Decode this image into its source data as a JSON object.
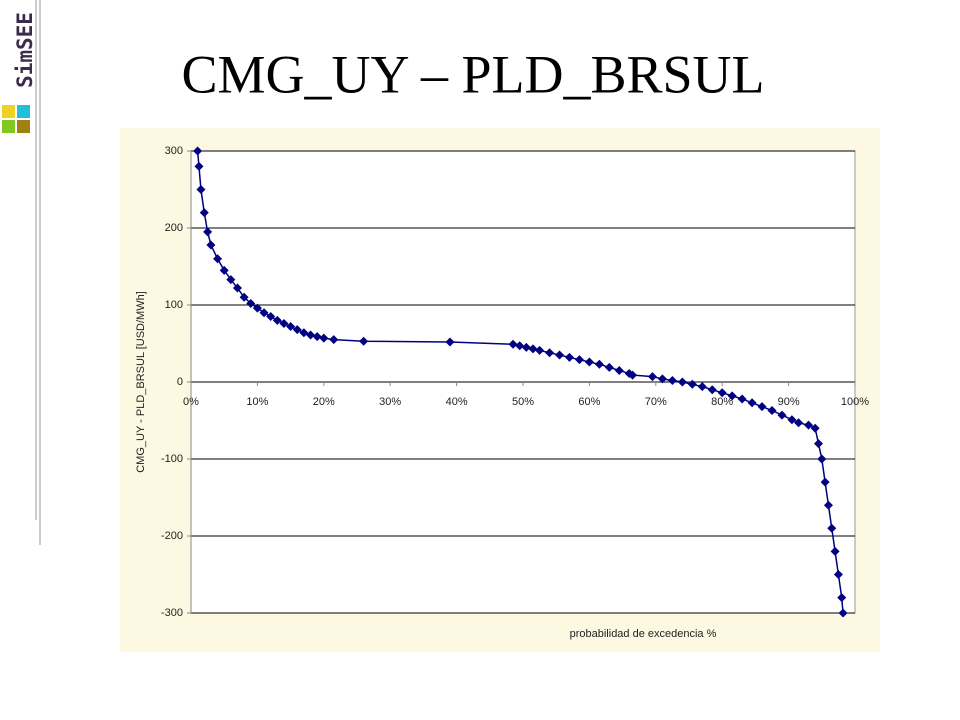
{
  "slide": {
    "logo": "SimSEE"
  },
  "chart_data": {
    "type": "line",
    "title": "CMG_UY – PLD_BRSUL",
    "x_label": "probabilidad de excedencia %",
    "y_label": "CMG_UY - PLD_BRSUL [USD/MWh]",
    "color": "#000080",
    "grid": true,
    "x": [
      1,
      1.2,
      1.5,
      2,
      2.5,
      3,
      4,
      5,
      6,
      7,
      8,
      9,
      10,
      11,
      12,
      13,
      14,
      15,
      16,
      17,
      18,
      19,
      20,
      21.5,
      26,
      39,
      48.5,
      49.5,
      50.5,
      51.5,
      52.5,
      54,
      55.5,
      57,
      58.5,
      60,
      61.5,
      63,
      64.5,
      66,
      66.5,
      69.5,
      71,
      72.5,
      74,
      75.5,
      77,
      78.5,
      80,
      81.5,
      83,
      84.5,
      86,
      87.5,
      89,
      90.5,
      91.5,
      93,
      94,
      94.5,
      95,
      95.5,
      96,
      96.5,
      97,
      97.5,
      98,
      98.2
    ],
    "values": [
      300,
      280,
      250,
      220,
      195,
      178,
      160,
      145,
      133,
      122,
      110,
      102,
      96,
      90,
      85,
      80,
      76,
      72,
      68,
      64,
      61,
      59,
      57,
      55,
      53,
      52,
      49,
      47,
      45,
      43,
      41,
      38,
      35,
      32,
      29,
      26,
      23,
      19,
      15,
      11,
      9,
      7,
      4,
      2,
      0,
      -3,
      -6,
      -10,
      -14,
      -18,
      -22,
      -27,
      -32,
      -37,
      -43,
      -49,
      -53,
      -56,
      -60,
      -80,
      -100,
      -130,
      -160,
      -190,
      -220,
      -250,
      -280,
      -300
    ],
    "xlim": [
      0,
      100
    ],
    "xticks": [
      {
        "value": 0,
        "label": "0%"
      },
      {
        "value": 10,
        "label": "10%"
      },
      {
        "value": 20,
        "label": "20%"
      },
      {
        "value": 30,
        "label": "30%"
      },
      {
        "value": 40,
        "label": "40%"
      },
      {
        "value": 50,
        "label": "50%"
      },
      {
        "value": 60,
        "label": "60%"
      },
      {
        "value": 70,
        "label": "70%"
      },
      {
        "value": 80,
        "label": "80%"
      },
      {
        "value": 90,
        "label": "90%"
      },
      {
        "value": 100,
        "label": "100%"
      }
    ],
    "ylim": [
      -300,
      300
    ],
    "yticks": [
      -300,
      -200,
      -100,
      0,
      100,
      200,
      300
    ]
  }
}
